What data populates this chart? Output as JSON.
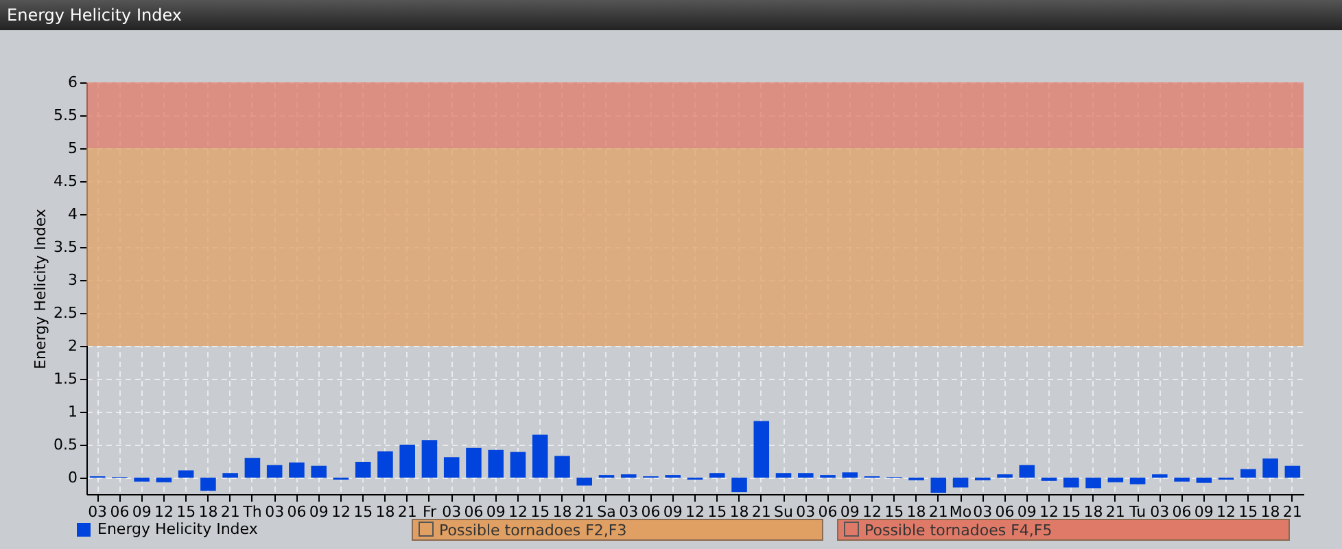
{
  "chart_data": {
    "type": "bar",
    "title": "Energy Helicity Index",
    "ylabel": "Energy Helicity Index",
    "categories": [
      "03",
      "06",
      "09",
      "12",
      "15",
      "18",
      "21",
      "Th",
      "03",
      "06",
      "09",
      "12",
      "15",
      "18",
      "21",
      "Fr",
      "03",
      "06",
      "09",
      "12",
      "15",
      "18",
      "21",
      "Sa",
      "03",
      "06",
      "09",
      "12",
      "15",
      "18",
      "21",
      "Su",
      "03",
      "06",
      "09",
      "12",
      "15",
      "18",
      "21",
      "Mo",
      "03",
      "06",
      "09",
      "12",
      "15",
      "18",
      "21",
      "Tu",
      "03",
      "06",
      "09",
      "12",
      "15",
      "18",
      "21"
    ],
    "series": [
      {
        "name": "Energy Helicity Index",
        "color": "#0044dd",
        "values": [
          0.02,
          0.01,
          -0.06,
          -0.07,
          0.11,
          -0.2,
          0.07,
          0.3,
          0.19,
          0.23,
          0.18,
          -0.03,
          0.24,
          0.4,
          0.5,
          0.57,
          0.31,
          0.45,
          0.42,
          0.39,
          0.65,
          0.33,
          -0.12,
          0.04,
          0.05,
          0.02,
          0.04,
          -0.03,
          0.07,
          -0.22,
          0.86,
          0.07,
          0.07,
          0.04,
          0.08,
          0.02,
          0.01,
          -0.04,
          -0.23,
          -0.15,
          -0.04,
          0.05,
          0.19,
          -0.05,
          -0.15,
          -0.16,
          -0.07,
          -0.1,
          0.05,
          -0.06,
          -0.08,
          -0.03,
          0.13,
          0.29,
          0.18
        ]
      }
    ],
    "ylim": [
      -0.25,
      6
    ],
    "yticks": [
      0,
      0.5,
      1,
      1.5,
      2,
      2.5,
      3,
      3.5,
      4,
      4.5,
      5,
      5.5,
      6
    ],
    "bands": [
      {
        "axis": "y",
        "from": 2,
        "to": 5,
        "label": "Possible tornadoes F2,F3",
        "color": "#e0a064"
      },
      {
        "axis": "y",
        "from": 5,
        "to": 6,
        "label": "Possible tornadoes F4,F5",
        "color": "#e07a68"
      }
    ],
    "grid": true,
    "legend": "bottom left"
  }
}
